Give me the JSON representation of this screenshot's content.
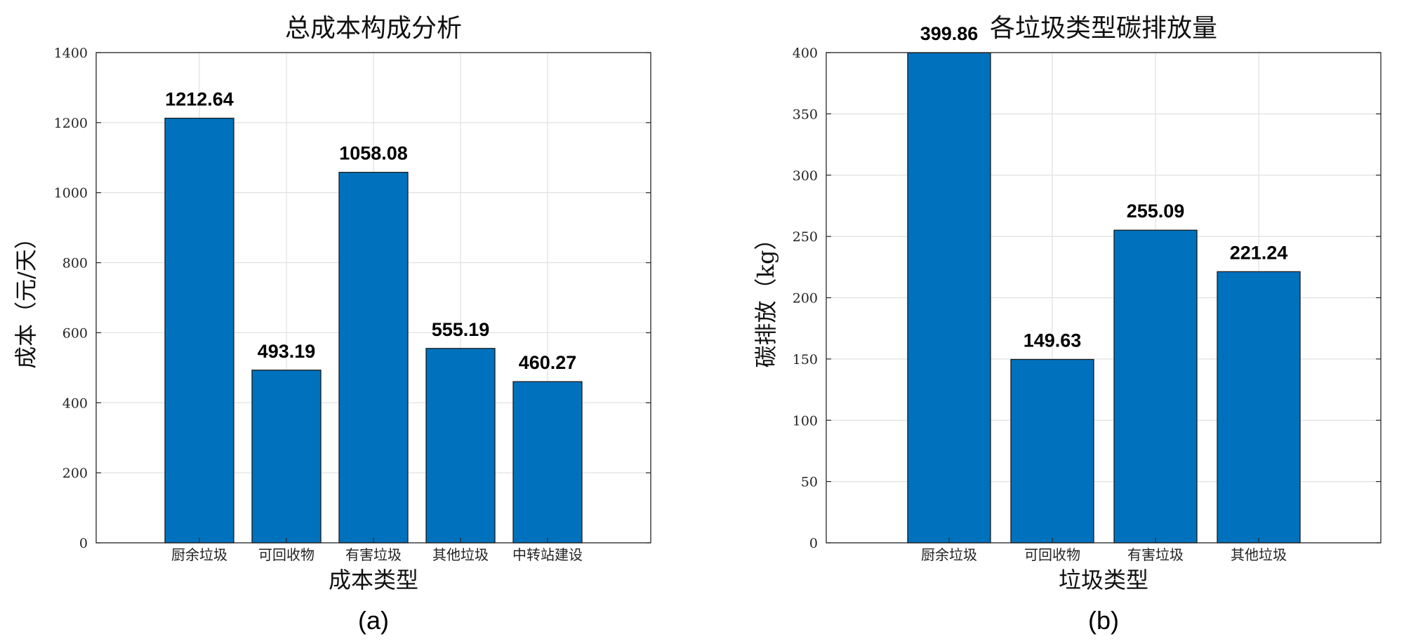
{
  "colors": {
    "bar": "#0072bd"
  },
  "chart_data": [
    {
      "type": "bar",
      "title": "总成本构成分析",
      "xlabel": "成本类型",
      "ylabel": "成本（元/天）",
      "panel_label": "(a)",
      "categories": [
        "厨余垃圾",
        "可回收物",
        "有害垃圾",
        "其他垃圾",
        "中转站建设"
      ],
      "values": [
        1212.64,
        493.19,
        1058.08,
        555.19,
        460.27
      ],
      "value_labels": [
        "1212.64",
        "493.19",
        "1058.08",
        "555.19",
        "460.27"
      ],
      "ylim": [
        0,
        1400
      ],
      "yticks": [
        0,
        200,
        400,
        600,
        800,
        1000,
        1200,
        1400
      ],
      "grid": true
    },
    {
      "type": "bar",
      "title": "各垃圾类型碳排放量",
      "xlabel": "垃圾类型",
      "ylabel": "碳排放（kg）",
      "panel_label": "(b)",
      "categories": [
        "厨余垃圾",
        "可回收物",
        "有害垃圾",
        "其他垃圾"
      ],
      "values": [
        399.86,
        149.63,
        255.09,
        221.24
      ],
      "value_labels": [
        "399.86",
        "149.63",
        "255.09",
        "221.24"
      ],
      "ylim": [
        0,
        400
      ],
      "yticks": [
        0,
        50,
        100,
        150,
        200,
        250,
        300,
        350,
        400
      ],
      "grid": true
    }
  ]
}
